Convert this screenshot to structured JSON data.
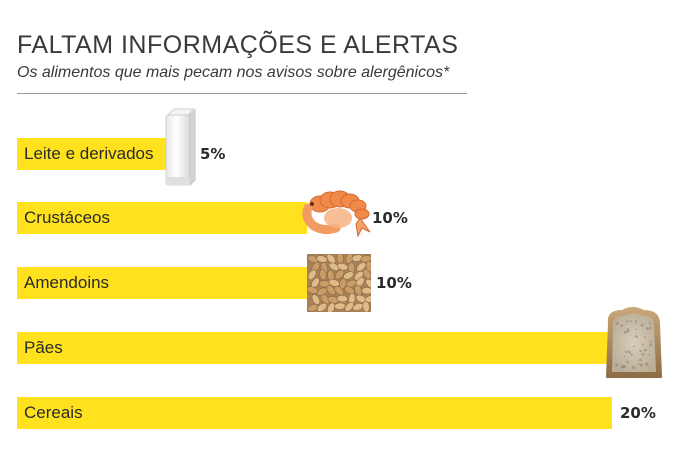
{
  "chart_data": {
    "type": "bar",
    "orientation": "horizontal",
    "title": "FALTAM INFORMAÇÕES E ALERTAS",
    "subtitle": "Os alimentos que mais pecam nos avisos sobre alergênicos*",
    "categories": [
      "Leite e derivados",
      "Crustáceos",
      "Amendoins",
      "Pães",
      "Cereais"
    ],
    "values": [
      5,
      10,
      10,
      20,
      20
    ],
    "value_labels": [
      "5%",
      "10%",
      "10%",
      "",
      "20%"
    ],
    "xlim": [
      0,
      20
    ],
    "unit": "%",
    "icons": [
      "milk-carton-icon",
      "shrimp-icon",
      "peanuts-icon",
      "bread-slice-icon",
      ""
    ],
    "bar_color": "#ffe21d",
    "grid": false,
    "legend": "none"
  }
}
